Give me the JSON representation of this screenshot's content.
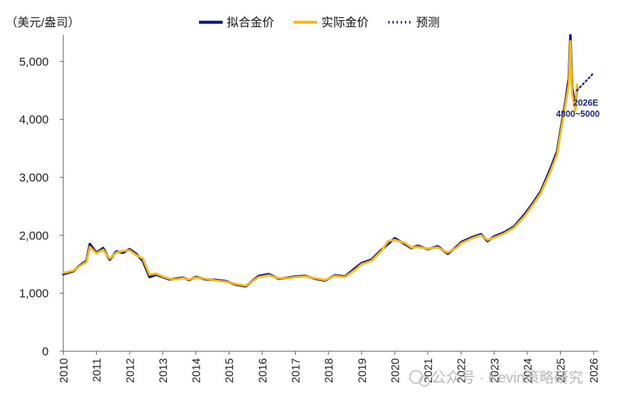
{
  "unit_label": "（美元/盎司）",
  "colors": {
    "fitted": "#141a7a",
    "actual": "#f7b81a",
    "forecast": "#1a2b8c",
    "axis": "#555555"
  },
  "chart_data": {
    "type": "line",
    "ylim": [
      0,
      5400
    ],
    "xlim": [
      2010,
      2026.1
    ],
    "yticks": [
      0,
      1000,
      2000,
      3000,
      4000,
      5000
    ],
    "ytick_labels": [
      "0",
      "1,000",
      "2,000",
      "3,000",
      "4,000",
      "5,000"
    ],
    "xticks": [
      2010,
      2011,
      2012,
      2013,
      2014,
      2015,
      2016,
      2017,
      2018,
      2019,
      2020,
      2021,
      2022,
      2023,
      2024,
      2025,
      2026
    ],
    "xtick_labels": [
      "2010",
      "2011",
      "2012",
      "2013",
      "2014",
      "2015",
      "2016",
      "2017",
      "2018",
      "2019",
      "2020",
      "2021",
      "2022",
      "2023",
      "2024",
      "2025",
      "2026"
    ],
    "legend": {
      "position": "top"
    },
    "series": [
      {
        "name": "拟合金价",
        "style": "solid",
        "x": [
          2010.0,
          2010.3,
          2010.5,
          2010.7,
          2010.8,
          2011.0,
          2011.2,
          2011.4,
          2011.6,
          2011.8,
          2012.0,
          2012.2,
          2012.4,
          2012.6,
          2012.8,
          2013.0,
          2013.2,
          2013.4,
          2013.6,
          2013.8,
          2014.0,
          2014.3,
          2014.6,
          2014.9,
          2015.2,
          2015.5,
          2015.9,
          2016.2,
          2016.5,
          2016.8,
          2017.0,
          2017.3,
          2017.6,
          2017.9,
          2018.2,
          2018.5,
          2018.8,
          2019.0,
          2019.3,
          2019.6,
          2019.8,
          2020.0,
          2020.3,
          2020.5,
          2020.7,
          2021.0,
          2021.3,
          2021.6,
          2021.9,
          2022.0,
          2022.3,
          2022.6,
          2022.8,
          2023.0,
          2023.3,
          2023.6,
          2023.9,
          2024.1,
          2024.4,
          2024.7,
          2024.9,
          2025.0,
          2025.15,
          2025.25,
          2025.3,
          2025.35,
          2025.45,
          2025.5
        ],
        "y": [
          1330,
          1380,
          1480,
          1560,
          1850,
          1700,
          1780,
          1580,
          1720,
          1700,
          1760,
          1680,
          1560,
          1280,
          1320,
          1280,
          1240,
          1250,
          1270,
          1230,
          1280,
          1240,
          1230,
          1210,
          1150,
          1120,
          1300,
          1330,
          1250,
          1270,
          1290,
          1300,
          1250,
          1220,
          1310,
          1290,
          1430,
          1520,
          1580,
          1750,
          1850,
          1950,
          1850,
          1780,
          1820,
          1760,
          1810,
          1680,
          1820,
          1880,
          1960,
          2020,
          1900,
          1980,
          2050,
          2150,
          2350,
          2500,
          2750,
          3150,
          3450,
          3800,
          4300,
          4700,
          5450,
          4550,
          4200,
          4550
        ]
      },
      {
        "name": "实际金价",
        "style": "solid",
        "x": [
          2010.0,
          2010.3,
          2010.5,
          2010.7,
          2010.8,
          2011.0,
          2011.2,
          2011.4,
          2011.6,
          2011.8,
          2012.0,
          2012.2,
          2012.4,
          2012.6,
          2012.8,
          2013.0,
          2013.2,
          2013.4,
          2013.6,
          2013.8,
          2014.0,
          2014.3,
          2014.6,
          2014.9,
          2015.2,
          2015.5,
          2015.9,
          2016.2,
          2016.5,
          2016.8,
          2017.0,
          2017.3,
          2017.6,
          2017.9,
          2018.2,
          2018.5,
          2018.8,
          2019.0,
          2019.3,
          2019.6,
          2019.8,
          2020.0,
          2020.3,
          2020.5,
          2020.7,
          2021.0,
          2021.3,
          2021.6,
          2021.9,
          2022.0,
          2022.3,
          2022.6,
          2022.8,
          2023.0,
          2023.3,
          2023.6,
          2023.9,
          2024.1,
          2024.4,
          2024.7,
          2024.9,
          2025.0,
          2025.15,
          2025.25,
          2025.3,
          2025.35,
          2025.45,
          2025.5
        ],
        "y": [
          1350,
          1390,
          1470,
          1540,
          1800,
          1690,
          1750,
          1600,
          1700,
          1730,
          1740,
          1660,
          1600,
          1320,
          1340,
          1290,
          1250,
          1240,
          1260,
          1240,
          1270,
          1250,
          1220,
          1200,
          1160,
          1130,
          1280,
          1310,
          1260,
          1260,
          1280,
          1290,
          1260,
          1230,
          1300,
          1280,
          1400,
          1500,
          1560,
          1730,
          1900,
          1920,
          1870,
          1790,
          1800,
          1770,
          1790,
          1700,
          1800,
          1860,
          1940,
          2000,
          1920,
          1960,
          2030,
          2130,
          2320,
          2470,
          2720,
          3100,
          3400,
          3750,
          4250,
          4600,
          5350,
          4450,
          4150,
          4600
        ]
      },
      {
        "name": "预测",
        "style": "dotted",
        "x": [
          2025.5,
          2026.0
        ],
        "y": [
          4500,
          4800
        ]
      }
    ],
    "annotations": [
      "2026E",
      "4800~5000"
    ]
  },
  "watermark": "公众号 · Kevin策略研究"
}
